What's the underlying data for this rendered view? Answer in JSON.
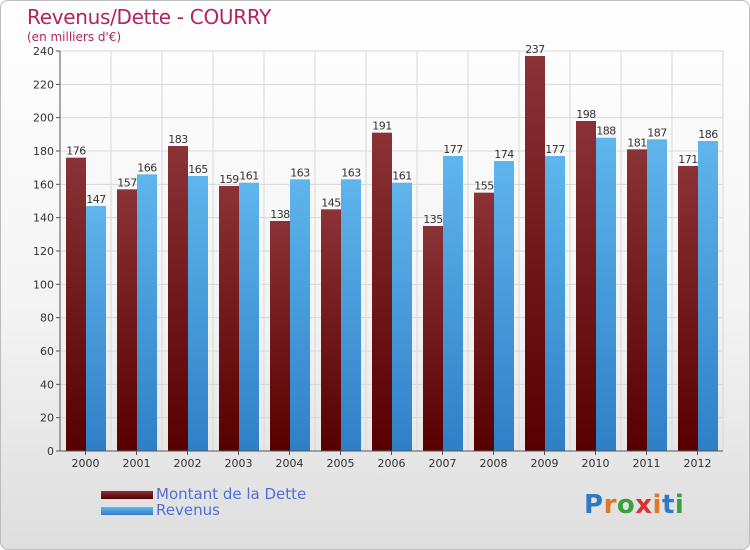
{
  "header": {
    "title": "Revenus/Dette - COURRY",
    "subtitle": "(en milliers d'€)"
  },
  "legend": {
    "items": [
      {
        "label": "Montant de la Dette",
        "color": "#6b1a1f"
      },
      {
        "label": "Revenus",
        "color": "#4a9fe0"
      }
    ]
  },
  "logo": {
    "text": "Proxiti",
    "letter_colors": [
      "#2f78c4",
      "#e0782a",
      "#3aa13a",
      "#d8332f",
      "#e0782a",
      "#2f78c4",
      "#3aa13a"
    ]
  },
  "colors": {
    "title": "#b3245f",
    "dette_top": "#8a3235",
    "dette_bottom": "#560000",
    "revenus_top": "#5fb5ec",
    "revenus_bottom": "#2f7fc7",
    "grid": "#d8d8d8",
    "axis": "#555555"
  },
  "chart_data": {
    "type": "bar",
    "categories": [
      "2000",
      "2001",
      "2002",
      "2003",
      "2004",
      "2005",
      "2006",
      "2007",
      "2008",
      "2009",
      "2010",
      "2011",
      "2012"
    ],
    "series": [
      {
        "name": "Montant de la Dette",
        "values": [
          176,
          157,
          183,
          159,
          138,
          145,
          191,
          135,
          155,
          237,
          198,
          181,
          171
        ]
      },
      {
        "name": "Revenus",
        "values": [
          147,
          166,
          165,
          161,
          163,
          163,
          161,
          177,
          174,
          177,
          188,
          187,
          186
        ]
      }
    ],
    "title": "Revenus/Dette - COURRY",
    "subtitle": "(en milliers d'€)",
    "ylim": [
      0,
      240
    ],
    "yticks": [
      0,
      20,
      40,
      60,
      80,
      100,
      120,
      140,
      160,
      180,
      200,
      220,
      240
    ],
    "grid": true,
    "legend_position": "bottom-left",
    "data_labels": true
  }
}
